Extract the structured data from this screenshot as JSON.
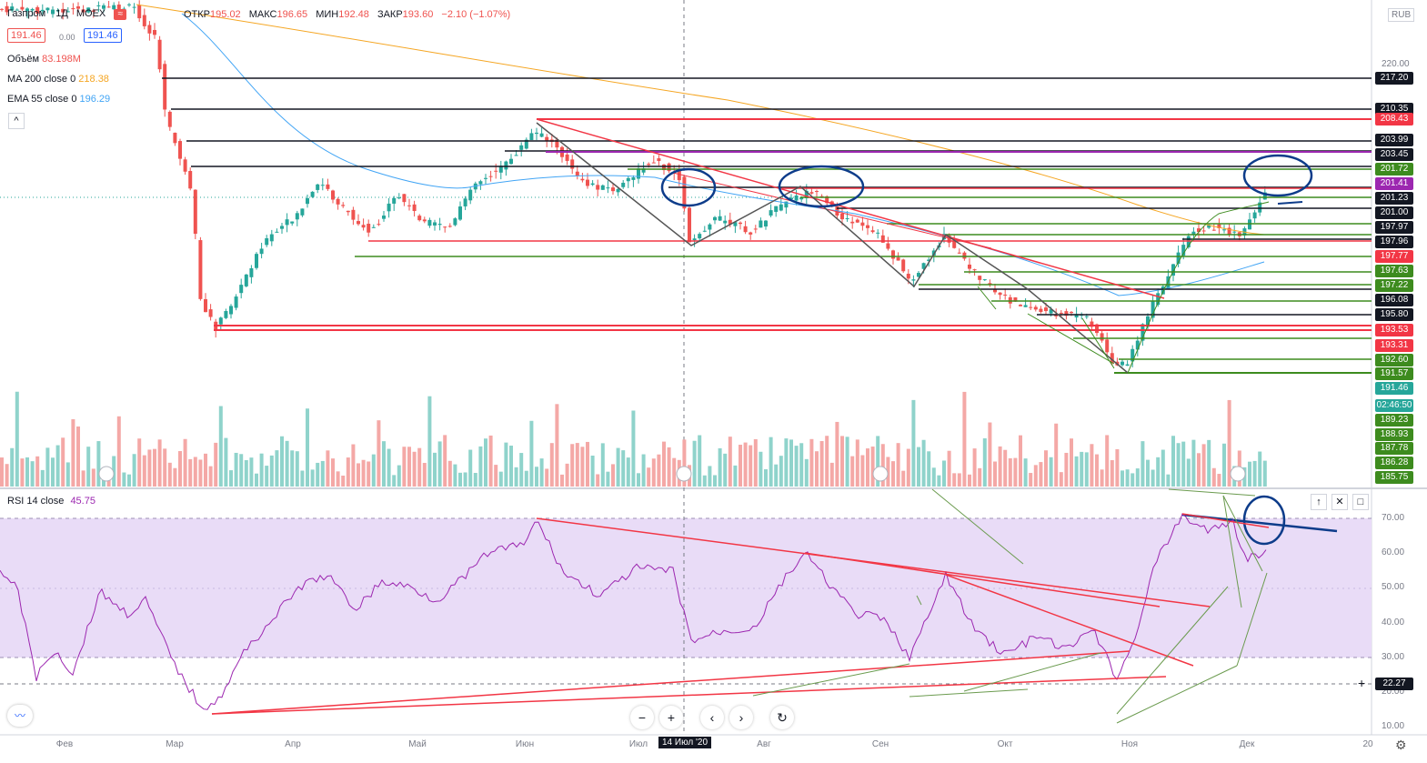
{
  "symbol": {
    "name": "Газпром",
    "interval": "1Д",
    "exchange": "MOEX"
  },
  "ohlc": {
    "open_label": "ОТКР",
    "open": "195.02",
    "high_label": "МАКС",
    "high": "196.65",
    "low_label": "МИН",
    "low": "192.48",
    "close_label": "ЗАКР",
    "close": "193.60",
    "change": "−2.10 (−1.07%)"
  },
  "bid": "191.46",
  "ask": "191.46",
  "spread": "0.00",
  "indicators": [
    {
      "label": "Объём",
      "value": "83.198M",
      "color": "#ef5350"
    },
    {
      "label": "MA 200 close 0",
      "value": "218.38",
      "color": "#f5a623"
    },
    {
      "label": "EMA 55 close 0",
      "value": "196.29",
      "color": "#42a5f5"
    }
  ],
  "currency": "RUB",
  "rsi": {
    "label": "RSI 14 close",
    "value": "45.75",
    "ticks": [
      "70.00",
      "60.00",
      "50.00",
      "40.00",
      "30.00",
      "20.00",
      "10.00"
    ],
    "crosshair_label": "22.27"
  },
  "price_ticks": [
    "220.00"
  ],
  "price_labels": [
    {
      "t": "217.20",
      "bg": "#131722"
    },
    {
      "t": "210.35",
      "bg": "#131722"
    },
    {
      "t": "208.43",
      "bg": "#f23645"
    },
    {
      "t": "203.99",
      "bg": "#131722"
    },
    {
      "t": "203.45",
      "bg": "#131722"
    },
    {
      "t": "201.72",
      "bg": "#3d8b1e"
    },
    {
      "t": "201.41",
      "bg": "#9c27b0"
    },
    {
      "t": "201.23",
      "bg": "#131722"
    },
    {
      "t": "201.00",
      "bg": "#131722"
    },
    {
      "t": "197.97",
      "bg": "#131722"
    },
    {
      "t": "197.96",
      "bg": "#131722"
    },
    {
      "t": "197.77",
      "bg": "#f23645"
    },
    {
      "t": "197.63",
      "bg": "#3d8b1e"
    },
    {
      "t": "197.22",
      "bg": "#3d8b1e"
    },
    {
      "t": "196.08",
      "bg": "#131722"
    },
    {
      "t": "195.80",
      "bg": "#131722"
    },
    {
      "t": "193.53",
      "bg": "#f23645"
    },
    {
      "t": "193.31",
      "bg": "#f23645"
    },
    {
      "t": "192.60",
      "bg": "#3d8b1e"
    },
    {
      "t": "191.57",
      "bg": "#3d8b1e"
    },
    {
      "t": "191.46",
      "bg": "#26a69a"
    },
    {
      "t": "02:46:50",
      "bg": "#26a69a"
    },
    {
      "t": "189.23",
      "bg": "#3d8b1e"
    },
    {
      "t": "188.93",
      "bg": "#3d8b1e"
    },
    {
      "t": "187.78",
      "bg": "#3d8b1e"
    },
    {
      "t": "186.28",
      "bg": "#3d8b1e"
    },
    {
      "t": "185.75",
      "bg": "#3d8b1e"
    }
  ],
  "months": [
    "Фев",
    "Мар",
    "Апр",
    "Май",
    "Июн",
    "Июл",
    "Авг",
    "Сен",
    "Окт",
    "Ноя",
    "Дек",
    "20"
  ],
  "crosshair_date": "14 Июл '20",
  "controls": {
    "minus": "−",
    "plus": "+",
    "back": "‹",
    "forward": "›",
    "reset": "↻"
  },
  "rsi_buttons": {
    "up": "↑",
    "close": "✕",
    "maximize": "□"
  },
  "colors": {
    "up": "#26a69a",
    "down": "#ef5350",
    "ma200": "#f5a623",
    "ema55": "#42a5f5",
    "rsi": "#9c27b0",
    "band": "#e9dcf7"
  }
}
